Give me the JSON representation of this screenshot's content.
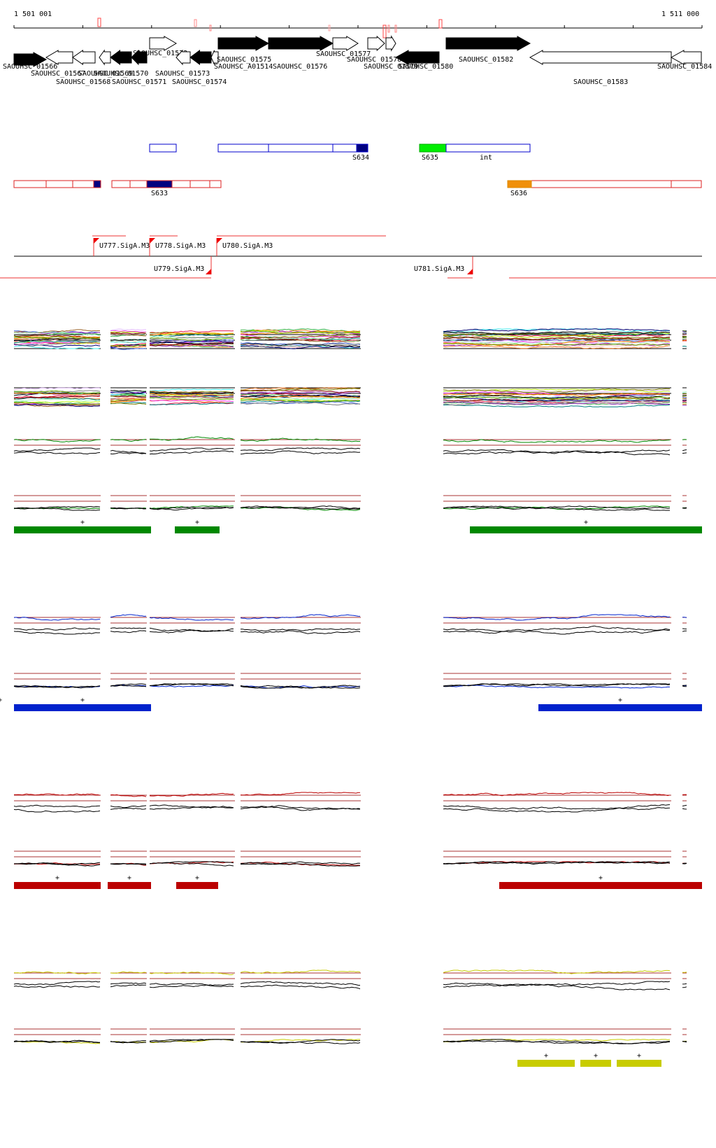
{
  "ruler": {
    "start_label": "1 501 001",
    "end_label": "1 511 000"
  },
  "genes": [
    {
      "label": "SAOUHSC_01566",
      "dir": "fwd",
      "fill": "black",
      "label_row": 1
    },
    {
      "label": "SAOUHSC_01567",
      "dir": "rev",
      "fill": "white",
      "label_row": 2
    },
    {
      "label": "SAOUHSC_01568",
      "dir": "rev",
      "fill": "white",
      "label_row": 3
    },
    {
      "label": "SAOUHSC_01569",
      "dir": "rev",
      "fill": "white",
      "label_row": 1
    },
    {
      "label": "SAOUHSC_01570",
      "dir": "rev",
      "fill": "black",
      "label_row": 2
    },
    {
      "label": "SAOUHSC_01571",
      "dir": "rev",
      "fill": "black",
      "label_row": 3
    },
    {
      "label": "SAOUHSC_01572",
      "dir": "fwd",
      "fill": "white",
      "label_row": 0
    },
    {
      "label": "SAOUHSC_01573",
      "dir": "rev",
      "fill": "white",
      "label_row": 2
    },
    {
      "label": "SAOUHSC_01574",
      "dir": "rev",
      "fill": "black",
      "label_row": 3
    },
    {
      "label": "SAOUHSC_A01514",
      "dir": "rev",
      "fill": "white",
      "label_row": 1
    },
    {
      "label": "SAOUHSC_01575",
      "dir": "fwd",
      "fill": "black",
      "label_row": 0
    },
    {
      "label": "SAOUHSC_01576",
      "dir": "fwd",
      "fill": "black",
      "label_row": 1
    },
    {
      "label": "SAOUHSC_01577",
      "dir": "fwd",
      "fill": "white",
      "label_row": 0
    },
    {
      "label": "SAOUHSC_01578",
      "dir": "fwd",
      "fill": "white",
      "label_row": 0
    },
    {
      "label": "SAOUHSC_01579",
      "dir": "fwd",
      "fill": "white",
      "label_row": 1
    },
    {
      "label": "SAOUHSC_01580",
      "dir": "rev",
      "fill": "black",
      "label_row": 1
    },
    {
      "label": "SAOUHSC_01582",
      "dir": "fwd",
      "fill": "black",
      "label_row": 0
    },
    {
      "label": "SAOUHSC_01583",
      "dir": "rev",
      "fill": "white",
      "label_row": 2
    },
    {
      "label": "SAOUHSC_01584",
      "dir": "rev",
      "fill": "white",
      "label_row": 1
    }
  ],
  "segments_blue": [
    {
      "label": "S634"
    },
    {
      "label": "S635",
      "color": "#00ee00"
    },
    {
      "label": "int"
    }
  ],
  "segments_red": [
    {
      "label": "S633",
      "color": "#000080"
    },
    {
      "label": "S636",
      "color": "#f0900a"
    }
  ],
  "promoters": [
    {
      "label": "U777.SigA.M3",
      "strand": "+"
    },
    {
      "label": "U778.SigA.M3",
      "strand": "+"
    },
    {
      "label": "U780.SigA.M3",
      "strand": "+"
    },
    {
      "label": "U779.SigA.M3",
      "strand": "-"
    },
    {
      "label": "U781.SigA.M3",
      "strand": "-"
    }
  ],
  "condition_colors": {
    "green": "#008800",
    "blue": "#0022cc",
    "red": "#bb0000",
    "yellow": "#c8cc00",
    "threshold": "#aa3333"
  },
  "expression_bars": {
    "green": [
      "+",
      "+",
      "+"
    ],
    "blue": [
      "+",
      "+",
      "+"
    ],
    "red": [
      "+",
      "+",
      "+",
      "+"
    ],
    "yellow": [
      "+",
      "+",
      "+"
    ]
  }
}
